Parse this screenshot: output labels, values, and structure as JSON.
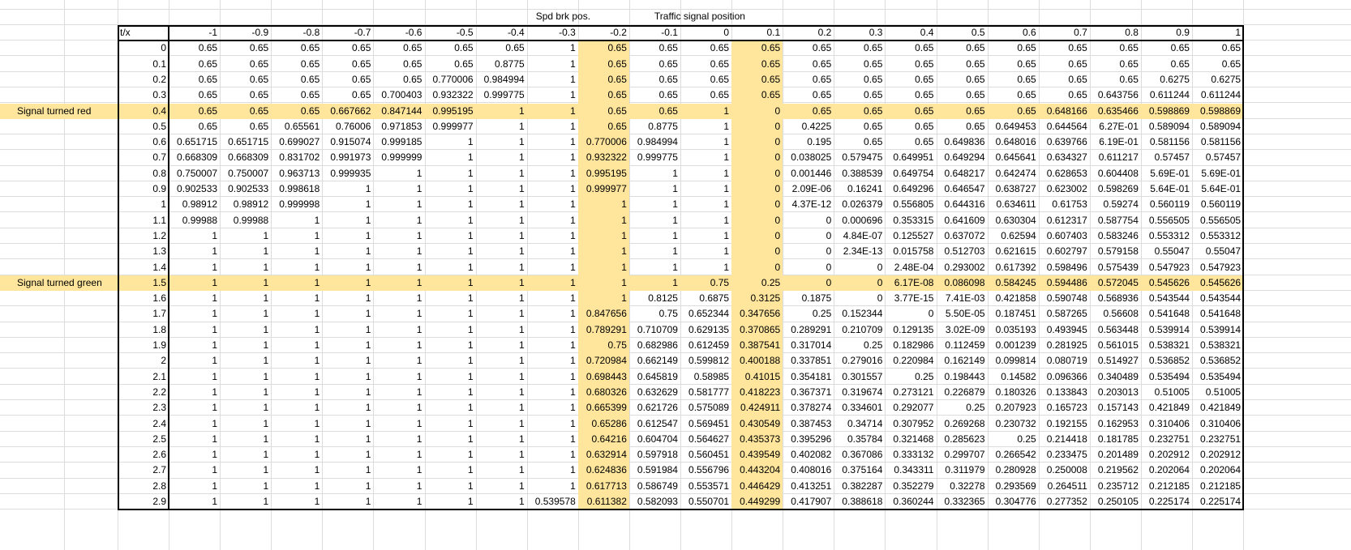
{
  "headers": {
    "spd_brk": "Spd brk pos.",
    "traffic_signal": "Traffic signal position",
    "corner": "t/x"
  },
  "annotations": {
    "red": "Signal turned red",
    "green": "Signal turned green"
  },
  "x_values": [
    "-1",
    "-0.9",
    "-0.8",
    "-0.7",
    "-0.6",
    "-0.5",
    "-0.4",
    "-0.3",
    "-0.2",
    "-0.1",
    "0",
    "0.1",
    "0.2",
    "0.3",
    "0.4",
    "0.5",
    "0.6",
    "0.7",
    "0.8",
    "0.9",
    "1"
  ],
  "rows": [
    {
      "t": "0",
      "v": [
        "0.65",
        "0.65",
        "0.65",
        "0.65",
        "0.65",
        "0.65",
        "0.65",
        "1",
        "0.65",
        "0.65",
        "0.65",
        "0.65",
        "0.65",
        "0.65",
        "0.65",
        "0.65",
        "0.65",
        "0.65",
        "0.65",
        "0.65",
        "0.65"
      ]
    },
    {
      "t": "0.1",
      "v": [
        "0.65",
        "0.65",
        "0.65",
        "0.65",
        "0.65",
        "0.65",
        "0.8775",
        "1",
        "0.65",
        "0.65",
        "0.65",
        "0.65",
        "0.65",
        "0.65",
        "0.65",
        "0.65",
        "0.65",
        "0.65",
        "0.65",
        "0.65",
        "0.65"
      ]
    },
    {
      "t": "0.2",
      "v": [
        "0.65",
        "0.65",
        "0.65",
        "0.65",
        "0.65",
        "0.770006",
        "0.984994",
        "1",
        "0.65",
        "0.65",
        "0.65",
        "0.65",
        "0.65",
        "0.65",
        "0.65",
        "0.65",
        "0.65",
        "0.65",
        "0.65",
        "0.6275",
        "0.6275"
      ]
    },
    {
      "t": "0.3",
      "v": [
        "0.65",
        "0.65",
        "0.65",
        "0.65",
        "0.700403",
        "0.932322",
        "0.999775",
        "1",
        "0.65",
        "0.65",
        "0.65",
        "0.65",
        "0.65",
        "0.65",
        "0.65",
        "0.65",
        "0.65",
        "0.65",
        "0.643756",
        "0.611244",
        "0.611244"
      ]
    },
    {
      "t": "0.4",
      "v": [
        "0.65",
        "0.65",
        "0.65",
        "0.667662",
        "0.847144",
        "0.995195",
        "1",
        "1",
        "0.65",
        "0.65",
        "1",
        "0",
        "0.65",
        "0.65",
        "0.65",
        "0.65",
        "0.65",
        "0.648166",
        "0.635466",
        "0.598869",
        "0.598869"
      ]
    },
    {
      "t": "0.5",
      "v": [
        "0.65",
        "0.65",
        "0.65561",
        "0.76006",
        "0.971853",
        "0.999977",
        "1",
        "1",
        "0.65",
        "0.8775",
        "1",
        "0",
        "0.4225",
        "0.65",
        "0.65",
        "0.65",
        "0.649453",
        "0.644564",
        "6.27E-01",
        "0.589094",
        "0.589094"
      ]
    },
    {
      "t": "0.6",
      "v": [
        "0.651715",
        "0.651715",
        "0.699027",
        "0.915074",
        "0.999185",
        "1",
        "1",
        "1",
        "0.770006",
        "0.984994",
        "1",
        "0",
        "0.195",
        "0.65",
        "0.65",
        "0.649836",
        "0.648016",
        "0.639766",
        "6.19E-01",
        "0.581156",
        "0.581156"
      ]
    },
    {
      "t": "0.7",
      "v": [
        "0.668309",
        "0.668309",
        "0.831702",
        "0.991973",
        "0.999999",
        "1",
        "1",
        "1",
        "0.932322",
        "0.999775",
        "1",
        "0",
        "0.038025",
        "0.579475",
        "0.649951",
        "0.649294",
        "0.645641",
        "0.634327",
        "0.611217",
        "0.57457",
        "0.57457"
      ]
    },
    {
      "t": "0.8",
      "v": [
        "0.750007",
        "0.750007",
        "0.963713",
        "0.999935",
        "1",
        "1",
        "1",
        "1",
        "0.995195",
        "1",
        "1",
        "0",
        "0.001446",
        "0.388539",
        "0.649754",
        "0.648217",
        "0.642474",
        "0.628653",
        "0.604408",
        "5.69E-01",
        "5.69E-01"
      ]
    },
    {
      "t": "0.9",
      "v": [
        "0.902533",
        "0.902533",
        "0.998618",
        "1",
        "1",
        "1",
        "1",
        "1",
        "0.999977",
        "1",
        "1",
        "0",
        "2.09E-06",
        "0.16241",
        "0.649296",
        "0.646547",
        "0.638727",
        "0.623002",
        "0.598269",
        "5.64E-01",
        "5.64E-01"
      ]
    },
    {
      "t": "1",
      "v": [
        "0.98912",
        "0.98912",
        "0.999998",
        "1",
        "1",
        "1",
        "1",
        "1",
        "1",
        "1",
        "1",
        "0",
        "4.37E-12",
        "0.026379",
        "0.556805",
        "0.644316",
        "0.634611",
        "0.61753",
        "0.59274",
        "0.560119",
        "0.560119"
      ]
    },
    {
      "t": "1.1",
      "v": [
        "0.99988",
        "0.99988",
        "1",
        "1",
        "1",
        "1",
        "1",
        "1",
        "1",
        "1",
        "1",
        "0",
        "0",
        "0.000696",
        "0.353315",
        "0.641609",
        "0.630304",
        "0.612317",
        "0.587754",
        "0.556505",
        "0.556505"
      ]
    },
    {
      "t": "1.2",
      "v": [
        "1",
        "1",
        "1",
        "1",
        "1",
        "1",
        "1",
        "1",
        "1",
        "1",
        "1",
        "0",
        "0",
        "4.84E-07",
        "0.125527",
        "0.637072",
        "0.62594",
        "0.607403",
        "0.583246",
        "0.553312",
        "0.553312"
      ]
    },
    {
      "t": "1.3",
      "v": [
        "1",
        "1",
        "1",
        "1",
        "1",
        "1",
        "1",
        "1",
        "1",
        "1",
        "1",
        "0",
        "0",
        "2.34E-13",
        "0.015758",
        "0.512703",
        "0.621615",
        "0.602797",
        "0.579158",
        "0.55047",
        "0.55047"
      ]
    },
    {
      "t": "1.4",
      "v": [
        "1",
        "1",
        "1",
        "1",
        "1",
        "1",
        "1",
        "1",
        "1",
        "1",
        "1",
        "0",
        "0",
        "0",
        "2.48E-04",
        "0.293002",
        "0.617392",
        "0.598496",
        "0.575439",
        "0.547923",
        "0.547923"
      ]
    },
    {
      "t": "1.5",
      "v": [
        "1",
        "1",
        "1",
        "1",
        "1",
        "1",
        "1",
        "1",
        "1",
        "1",
        "0.75",
        "0.25",
        "0",
        "0",
        "6.17E-08",
        "0.086098",
        "0.584245",
        "0.594486",
        "0.572045",
        "0.545626",
        "0.545626"
      ]
    },
    {
      "t": "1.6",
      "v": [
        "1",
        "1",
        "1",
        "1",
        "1",
        "1",
        "1",
        "1",
        "1",
        "0.8125",
        "0.6875",
        "0.3125",
        "0.1875",
        "0",
        "3.77E-15",
        "7.41E-03",
        "0.421858",
        "0.590748",
        "0.568936",
        "0.543544",
        "0.543544"
      ]
    },
    {
      "t": "1.7",
      "v": [
        "1",
        "1",
        "1",
        "1",
        "1",
        "1",
        "1",
        "1",
        "0.847656",
        "0.75",
        "0.652344",
        "0.347656",
        "0.25",
        "0.152344",
        "0",
        "5.50E-05",
        "0.187451",
        "0.587265",
        "0.56608",
        "0.541648",
        "0.541648"
      ]
    },
    {
      "t": "1.8",
      "v": [
        "1",
        "1",
        "1",
        "1",
        "1",
        "1",
        "1",
        "1",
        "0.789291",
        "0.710709",
        "0.629135",
        "0.370865",
        "0.289291",
        "0.210709",
        "0.129135",
        "3.02E-09",
        "0.035193",
        "0.493945",
        "0.563448",
        "0.539914",
        "0.539914"
      ]
    },
    {
      "t": "1.9",
      "v": [
        "1",
        "1",
        "1",
        "1",
        "1",
        "1",
        "1",
        "1",
        "0.75",
        "0.682986",
        "0.612459",
        "0.387541",
        "0.317014",
        "0.25",
        "0.182986",
        "0.112459",
        "0.001239",
        "0.281925",
        "0.561015",
        "0.538321",
        "0.538321"
      ]
    },
    {
      "t": "2",
      "v": [
        "1",
        "1",
        "1",
        "1",
        "1",
        "1",
        "1",
        "1",
        "0.720984",
        "0.662149",
        "0.599812",
        "0.400188",
        "0.337851",
        "0.279016",
        "0.220984",
        "0.162149",
        "0.099814",
        "0.080719",
        "0.514927",
        "0.536852",
        "0.536852"
      ]
    },
    {
      "t": "2.1",
      "v": [
        "1",
        "1",
        "1",
        "1",
        "1",
        "1",
        "1",
        "1",
        "0.698443",
        "0.645819",
        "0.58985",
        "0.41015",
        "0.354181",
        "0.301557",
        "0.25",
        "0.198443",
        "0.14582",
        "0.096366",
        "0.340489",
        "0.535494",
        "0.535494"
      ]
    },
    {
      "t": "2.2",
      "v": [
        "1",
        "1",
        "1",
        "1",
        "1",
        "1",
        "1",
        "1",
        "0.680326",
        "0.632629",
        "0.581777",
        "0.418223",
        "0.367371",
        "0.319674",
        "0.273121",
        "0.226879",
        "0.180326",
        "0.133843",
        "0.203013",
        "0.51005",
        "0.51005"
      ]
    },
    {
      "t": "2.3",
      "v": [
        "1",
        "1",
        "1",
        "1",
        "1",
        "1",
        "1",
        "1",
        "0.665399",
        "0.621726",
        "0.575089",
        "0.424911",
        "0.378274",
        "0.334601",
        "0.292077",
        "0.25",
        "0.207923",
        "0.165723",
        "0.157143",
        "0.421849",
        "0.421849"
      ]
    },
    {
      "t": "2.4",
      "v": [
        "1",
        "1",
        "1",
        "1",
        "1",
        "1",
        "1",
        "1",
        "0.65286",
        "0.612547",
        "0.569451",
        "0.430549",
        "0.387453",
        "0.34714",
        "0.307952",
        "0.269268",
        "0.230732",
        "0.192155",
        "0.162953",
        "0.310406",
        "0.310406"
      ]
    },
    {
      "t": "2.5",
      "v": [
        "1",
        "1",
        "1",
        "1",
        "1",
        "1",
        "1",
        "1",
        "0.64216",
        "0.604704",
        "0.564627",
        "0.435373",
        "0.395296",
        "0.35784",
        "0.321468",
        "0.285623",
        "0.25",
        "0.214418",
        "0.181785",
        "0.232751",
        "0.232751"
      ]
    },
    {
      "t": "2.6",
      "v": [
        "1",
        "1",
        "1",
        "1",
        "1",
        "1",
        "1",
        "1",
        "0.632914",
        "0.597918",
        "0.560451",
        "0.439549",
        "0.402082",
        "0.367086",
        "0.333132",
        "0.299707",
        "0.266542",
        "0.233475",
        "0.201489",
        "0.202912",
        "0.202912"
      ]
    },
    {
      "t": "2.7",
      "v": [
        "1",
        "1",
        "1",
        "1",
        "1",
        "1",
        "1",
        "1",
        "0.624836",
        "0.591984",
        "0.556796",
        "0.443204",
        "0.408016",
        "0.375164",
        "0.343311",
        "0.311979",
        "0.280928",
        "0.250008",
        "0.219562",
        "0.202064",
        "0.202064"
      ]
    },
    {
      "t": "2.8",
      "v": [
        "1",
        "1",
        "1",
        "1",
        "1",
        "1",
        "1",
        "1",
        "0.617713",
        "0.586749",
        "0.553571",
        "0.446429",
        "0.413251",
        "0.382287",
        "0.352279",
        "0.32278",
        "0.293569",
        "0.264511",
        "0.235712",
        "0.212185",
        "0.212185"
      ]
    },
    {
      "t": "2.9",
      "v": [
        "1",
        "1",
        "1",
        "1",
        "1",
        "1",
        "1",
        "0.539578",
        "0.611382",
        "0.582093",
        "0.550701",
        "0.449299",
        "0.417907",
        "0.388618",
        "0.360244",
        "0.332365",
        "0.304776",
        "0.277352",
        "0.250105",
        "0.225174",
        "0.225174"
      ]
    }
  ],
  "highlight": {
    "columns": [
      "-0.2",
      "0.1"
    ],
    "rows": [
      "0.4",
      "1.5"
    ],
    "color": "#ffe69c"
  }
}
